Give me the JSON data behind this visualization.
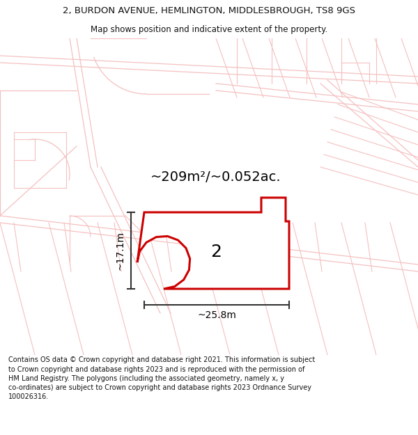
{
  "title_line1": "2, BURDON AVENUE, HEMLINGTON, MIDDLESBROUGH, TS8 9GS",
  "title_line2": "Map shows position and indicative extent of the property.",
  "footer_text": "Contains OS data © Crown copyright and database right 2021. This information is subject to Crown copyright and database rights 2023 and is reproduced with the permission of HM Land Registry. The polygons (including the associated geometry, namely x, y co-ordinates) are subject to Crown copyright and database rights 2023 Ordnance Survey 100026316.",
  "area_label": "~209m²/~0.052ac.",
  "width_label": "~25.8m",
  "height_label": "~17.1m",
  "property_number": "2",
  "bg_color": "#ffffff",
  "map_bg": "#ffffff",
  "plot_color": "#cc0000",
  "light_pink": "#f5c0c0",
  "dim_color": "#333333",
  "title_color": "#111111",
  "footer_color": "#111111",
  "title_fontsize": 9.5,
  "subtitle_fontsize": 8.5,
  "area_fontsize": 14,
  "number_fontsize": 18,
  "dim_fontsize": 10,
  "footer_fontsize": 7.0
}
